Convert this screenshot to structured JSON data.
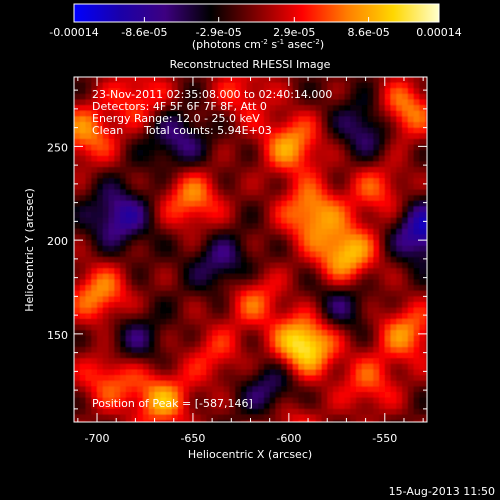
{
  "chart_data": {
    "type": "heatmap",
    "title": "Reconstructed RHESSI Image",
    "xlabel": "Heliocentric X (arcsec)",
    "ylabel": "Heliocentric Y (arcsec)",
    "xlim": [
      -712,
      -528
    ],
    "ylim": [
      103,
      287
    ],
    "xticks": [
      -700,
      -650,
      -600,
      -550
    ],
    "xtick_labels": [
      "-700",
      "-650",
      "-600",
      "-550"
    ],
    "yticks": [
      150,
      200,
      250
    ],
    "ytick_labels": [
      "150",
      "200",
      "250"
    ],
    "colorbar": {
      "ticks": [
        -0.00014,
        -8.6e-05,
        -2.9e-05,
        2.9e-05,
        8.6e-05,
        0.00014
      ],
      "tick_labels": [
        "-0.00014",
        "-8.6e-05",
        "-2.9e-05",
        "2.9e-05",
        "8.6e-05",
        "0.00014"
      ],
      "unit_label": "(photons cm",
      "unit_sup1": "-2",
      "unit_mid": " s",
      "unit_sup2": "-1",
      "unit_end": " asec",
      "unit_sup3": "-2",
      "unit_close": ")",
      "colormap": [
        "#0000ff",
        "#1a00aa",
        "#3d0080",
        "#000000",
        "#800000",
        "#ff0000",
        "#ff7f00",
        "#ffd700",
        "#ffffcc"
      ]
    },
    "annotations": {
      "time_range": "23-Nov-2011 02:35:08.000 to 02:40:14.000",
      "detectors": "Detectors: 4F 5F 6F 7F 8F, Att 0",
      "energy": "Energy Range: 12.0 - 25.0 keV",
      "clean": "Clean",
      "counts": "Total counts: 5.94E+03",
      "peak": "Position of Peak = [-587,146]"
    },
    "sources": [
      {
        "x": -593,
        "y": 146,
        "flux": 0.00014
      },
      {
        "x": -572,
        "y": 194,
        "flux": 0.00011
      },
      {
        "x": -590,
        "y": 216,
        "flux": 9.5e-05
      },
      {
        "x": -600,
        "y": 252,
        "flux": 9e-05
      },
      {
        "x": -707,
        "y": 258,
        "flux": 8e-05
      },
      {
        "x": -700,
        "y": 172,
        "flux": 8.5e-05
      },
      {
        "x": -695,
        "y": 128,
        "flux": 7e-05
      },
      {
        "x": -668,
        "y": 116,
        "flux": 9e-05
      },
      {
        "x": -652,
        "y": 223,
        "flux": 8e-05
      },
      {
        "x": -542,
        "y": 270,
        "flux": 9e-05
      },
      {
        "x": -540,
        "y": 152,
        "flux": 8e-05
      },
      {
        "x": -620,
        "y": 170,
        "flux": 6.5e-05
      },
      {
        "x": -560,
        "y": 125,
        "flux": 6e-05
      },
      {
        "x": -640,
        "y": 140,
        "flux": 5e-05
      },
      {
        "x": -555,
        "y": 228,
        "flux": 6e-05
      },
      {
        "x": -625,
        "y": 280,
        "flux": 5e-05
      },
      {
        "x": -680,
        "y": 278,
        "flux": 6e-05
      },
      {
        "x": -600,
        "y": 104,
        "flux": 5e-05
      },
      {
        "x": -690,
        "y": 214,
        "flux": -8e-05
      },
      {
        "x": -636,
        "y": 188,
        "flux": -6e-05
      },
      {
        "x": -560,
        "y": 262,
        "flux": -7e-05
      },
      {
        "x": -531,
        "y": 206,
        "flux": -0.0001
      },
      {
        "x": -611,
        "y": 121,
        "flux": -6e-05
      },
      {
        "x": -575,
        "y": 166,
        "flux": -5e-05
      },
      {
        "x": -660,
        "y": 255,
        "flux": -6e-05
      },
      {
        "x": -683,
        "y": 148,
        "flux": -5e-05
      }
    ]
  },
  "footer": {
    "date": "15-Aug-2013 11:50"
  }
}
